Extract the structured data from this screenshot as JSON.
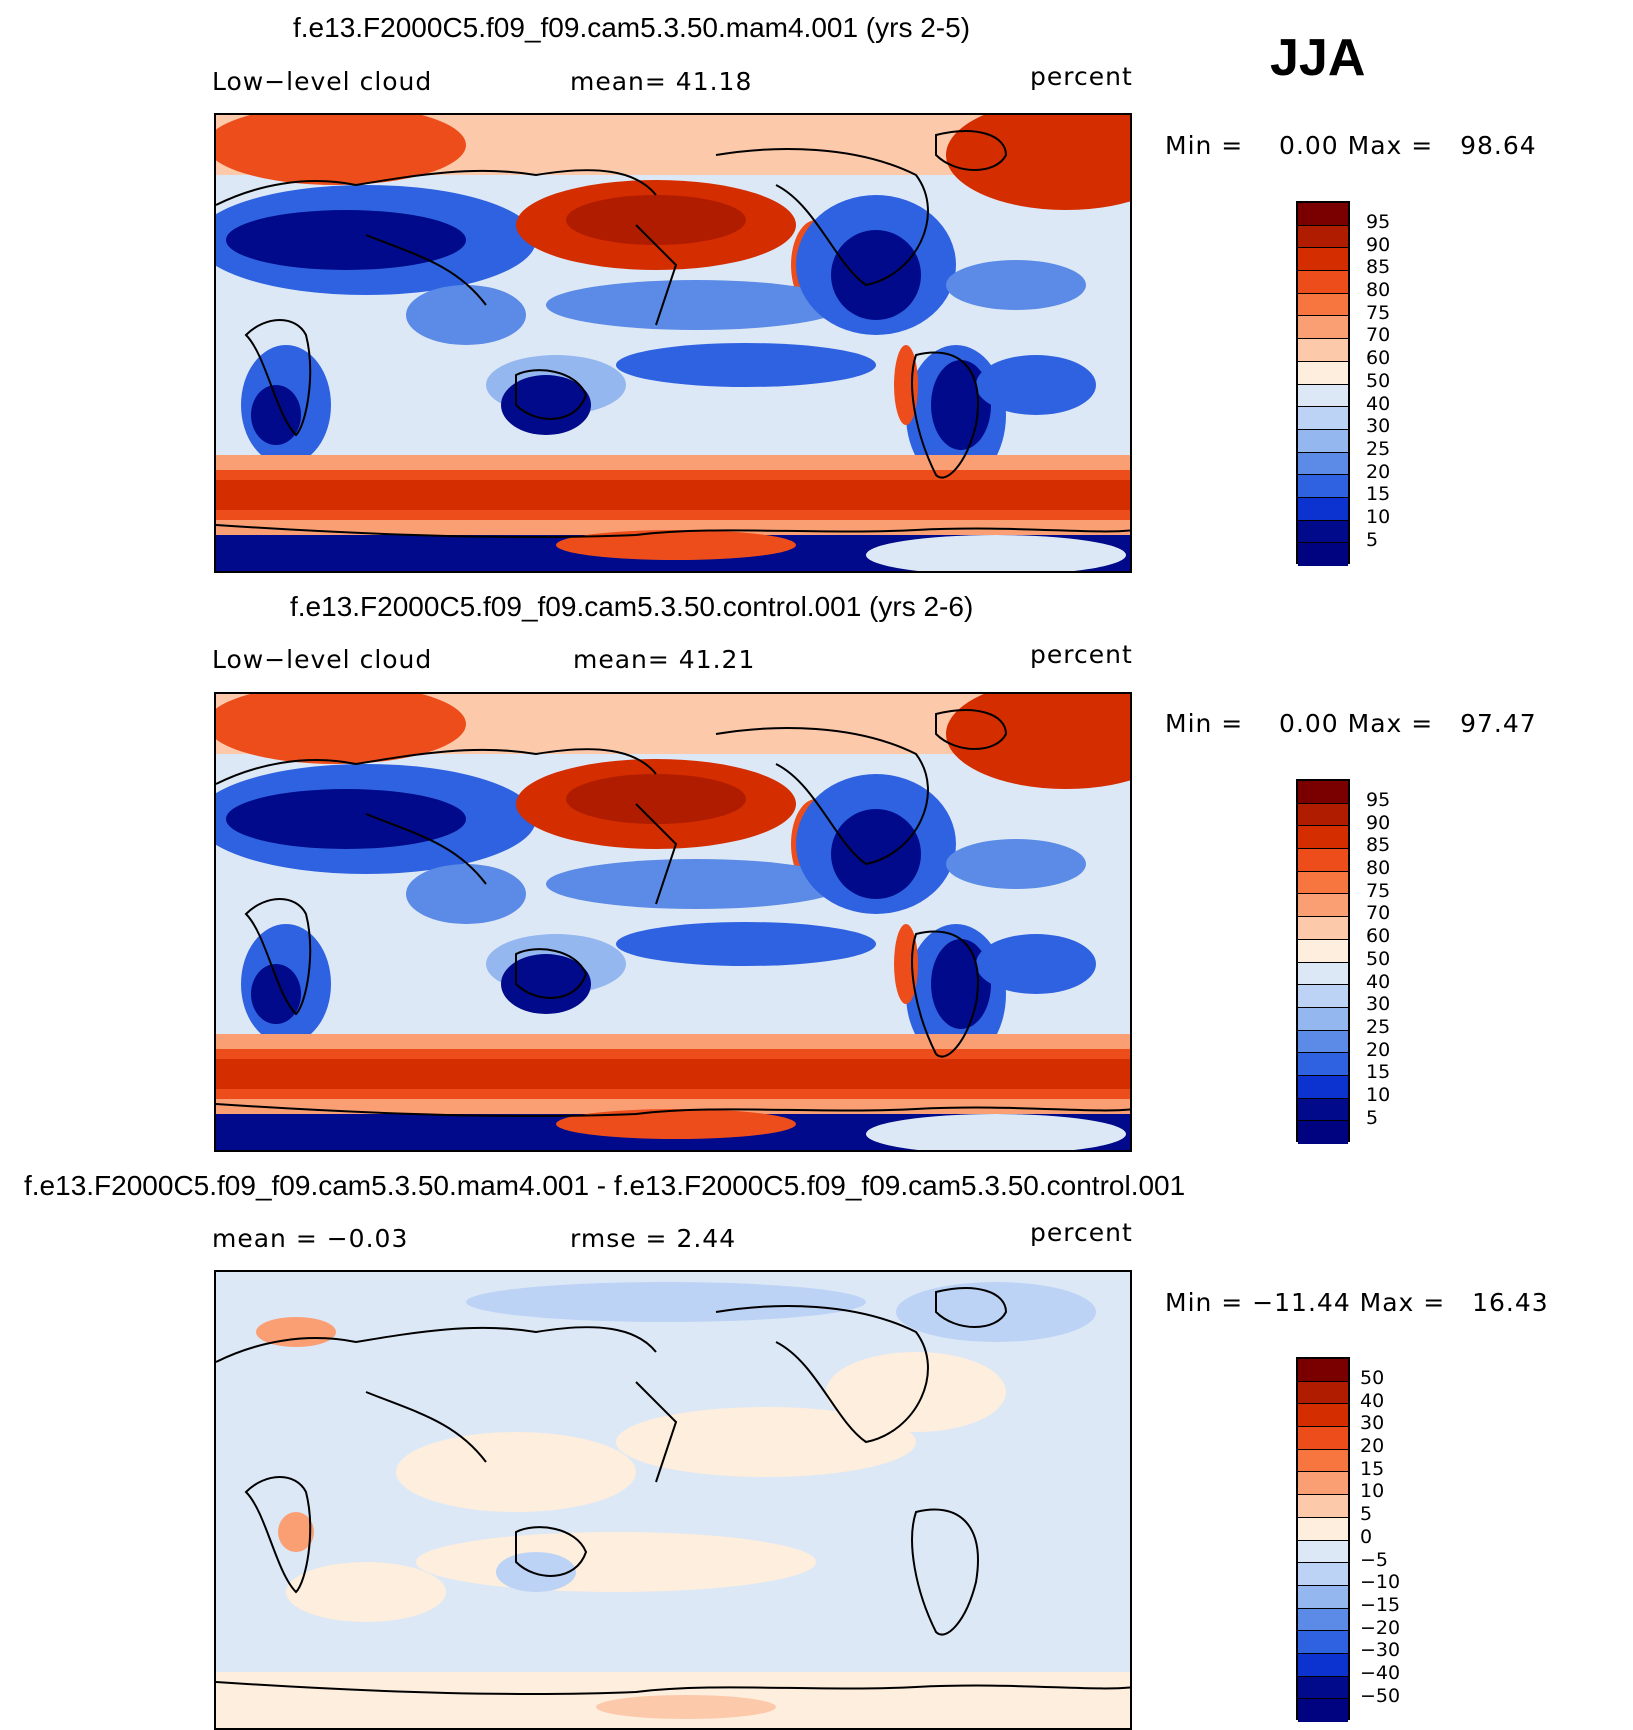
{
  "season": "JJA",
  "panels": [
    {
      "title": "f.e13.F2000C5.f09_f09.cam5.3.50.mam4.001 (yrs 2-5)",
      "left_label": "Low−level cloud",
      "mid_label": "mean=   41.18",
      "right_label": "percent",
      "minmax": "Min =    0.00 Max =   98.64",
      "levels": [
        "95",
        "90",
        "85",
        "80",
        "75",
        "70",
        "60",
        "50",
        "40",
        "30",
        "25",
        "20",
        "15",
        "10",
        "5"
      ]
    },
    {
      "title": "f.e13.F2000C5.f09_f09.cam5.3.50.control.001 (yrs 2-6)",
      "left_label": "Low−level cloud",
      "mid_label": "mean=   41.21",
      "right_label": "percent",
      "minmax": "Min =    0.00 Max =   97.47",
      "levels": [
        "95",
        "90",
        "85",
        "80",
        "75",
        "70",
        "60",
        "50",
        "40",
        "30",
        "25",
        "20",
        "15",
        "10",
        "5"
      ]
    },
    {
      "title": "f.e13.F2000C5.f09_f09.cam5.3.50.mam4.001 - f.e13.F2000C5.f09_f09.cam5.3.50.control.001",
      "left_label": "mean =   −0.03",
      "mid_label": "rmse =    2.44",
      "right_label": "percent",
      "minmax": "Min = −11.44 Max =   16.43",
      "levels": [
        "50",
        "40",
        "30",
        "20",
        "15",
        "10",
        "5",
        "0",
        "−5",
        "−10",
        "−15",
        "−20",
        "−30",
        "−40",
        "−50"
      ]
    }
  ],
  "colors": [
    "#7a0000",
    "#b01c00",
    "#d42d00",
    "#ed4d1b",
    "#f7763f",
    "#fa9f73",
    "#fdc9ab",
    "#fdeedd",
    "#dde8f6",
    "#bcd3f5",
    "#94b7f0",
    "#5b8be6",
    "#2e62e0",
    "#0c33cf",
    "#000a8a",
    "#000380"
  ]
}
